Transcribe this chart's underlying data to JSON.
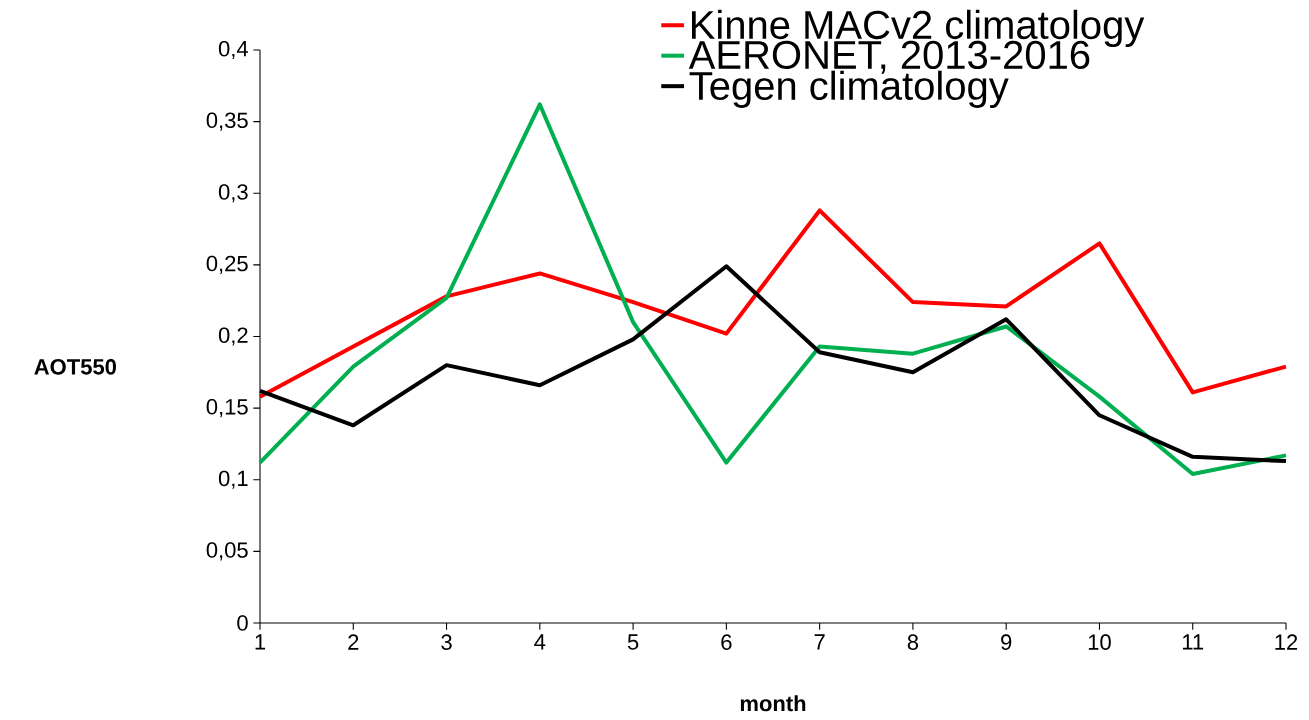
{
  "chart_data": {
    "type": "line",
    "xlabel": "month",
    "ylabel": "AOT550",
    "x": [
      1,
      2,
      3,
      4,
      5,
      6,
      7,
      8,
      9,
      10,
      11,
      12
    ],
    "xlim": [
      1,
      12
    ],
    "xticks": [
      1,
      2,
      3,
      4,
      5,
      6,
      7,
      8,
      9,
      10,
      11,
      12
    ],
    "ylim": [
      0,
      0.4
    ],
    "yticks": [
      0,
      {
        "value": 0.05,
        "label": "0,05"
      },
      {
        "value": 0.1,
        "label": "0,1"
      },
      {
        "value": 0.15,
        "label": "0,15"
      },
      {
        "value": 0.2,
        "label": "0,2"
      },
      {
        "value": 0.25,
        "label": "0,25"
      },
      {
        "value": 0.3,
        "label": "0,3"
      },
      {
        "value": 0.35,
        "label": "0,35"
      },
      {
        "value": 0.4,
        "label": "0,4"
      }
    ],
    "grid": false,
    "legend": "top right",
    "marker": "none",
    "line_style": "solid",
    "series": [
      {
        "name": "Kinne MACv2 climatology",
        "color": "#ff0000",
        "values": [
          0.158,
          0.193,
          0.228,
          0.244,
          0.224,
          0.202,
          0.288,
          0.224,
          0.221,
          0.265,
          0.161,
          0.179
        ]
      },
      {
        "name": "AERONET, 2013-2016",
        "color": "#00b050",
        "values": [
          0.112,
          0.179,
          0.227,
          0.362,
          0.21,
          0.112,
          0.193,
          0.188,
          0.207,
          0.158,
          0.104,
          0.117
        ]
      },
      {
        "name": "Tegen climatology",
        "color": "#000000",
        "values": [
          0.162,
          0.138,
          0.18,
          0.166,
          0.198,
          0.249,
          0.189,
          0.175,
          0.212,
          0.145,
          0.116,
          0.113
        ]
      }
    ]
  }
}
